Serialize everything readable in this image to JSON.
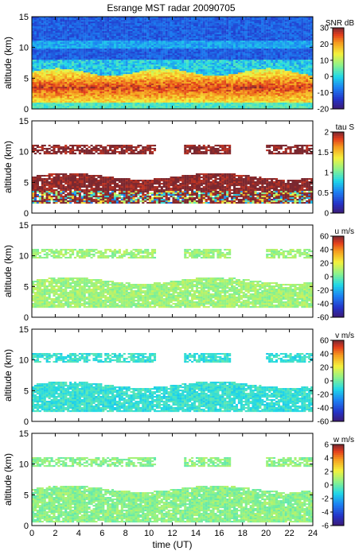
{
  "chart_data": [
    {
      "type": "heatmap",
      "title": "Esrange MST radar 20090705",
      "ylabel": "altitude (km)",
      "xlabel": "",
      "xlim": [
        0,
        24
      ],
      "ylim": [
        0,
        15
      ],
      "yticks": [
        "0",
        "5",
        "10",
        "15"
      ],
      "xticks": [],
      "colorbar": {
        "label": "SNR dB",
        "range": [
          -20,
          30
        ],
        "ticks": [
          "30",
          "20",
          "10",
          "0",
          "-10",
          "-20"
        ]
      },
      "features": {
        "background": "-12 dB noise floor above ~6 km",
        "strong_layer_km": [
          1.5,
          6
        ],
        "peak_db": 28
      }
    },
    {
      "type": "heatmap",
      "title": "",
      "ylabel": "altitude (km)",
      "xlabel": "",
      "xlim": [
        0,
        24
      ],
      "ylim": [
        0,
        15
      ],
      "yticks": [
        "0",
        "5",
        "10",
        "15"
      ],
      "xticks": [],
      "colorbar": {
        "label": "tau S",
        "range": [
          0,
          2
        ],
        "ticks": [
          "2",
          "1.5",
          "1",
          "0.5",
          "0"
        ]
      },
      "features": {
        "lower_layer_km": [
          1.5,
          6
        ],
        "upper_layer_km": [
          9.5,
          11
        ],
        "typical_value": 2.0
      }
    },
    {
      "type": "heatmap",
      "title": "",
      "ylabel": "altitude (km)",
      "xlabel": "",
      "xlim": [
        0,
        24
      ],
      "ylim": [
        0,
        15
      ],
      "yticks": [
        "0",
        "5",
        "10",
        "15"
      ],
      "xticks": [],
      "colorbar": {
        "label": "u m/s",
        "range": [
          -60,
          60
        ],
        "ticks": [
          "60",
          "40",
          "20",
          "0",
          "-20",
          "-40",
          "-60"
        ]
      },
      "features": {
        "lower_layer_km": [
          1.5,
          6
        ],
        "upper_layer_km": [
          9.5,
          11
        ],
        "typical_value": 8
      }
    },
    {
      "type": "heatmap",
      "title": "",
      "ylabel": "altitude (km)",
      "xlabel": "",
      "xlim": [
        0,
        24
      ],
      "ylim": [
        0,
        15
      ],
      "yticks": [
        "0",
        "5",
        "10",
        "15"
      ],
      "xticks": [],
      "colorbar": {
        "label": "v m/s",
        "range": [
          -60,
          60
        ],
        "ticks": [
          "60",
          "40",
          "20",
          "0",
          "-20",
          "-40",
          "-60"
        ]
      },
      "features": {
        "lower_layer_km": [
          1.5,
          6
        ],
        "upper_layer_km": [
          9.5,
          11
        ],
        "typical_value": -8
      }
    },
    {
      "type": "heatmap",
      "title": "",
      "ylabel": "altitude (km)",
      "xlabel": "time (UT)",
      "xlim": [
        0,
        24
      ],
      "ylim": [
        0,
        15
      ],
      "yticks": [
        "0",
        "5",
        "10",
        "15"
      ],
      "xticks": [
        "0",
        "2",
        "4",
        "6",
        "8",
        "10",
        "12",
        "14",
        "16",
        "18",
        "20",
        "22",
        "24"
      ],
      "colorbar": {
        "label": "w m/s",
        "range": [
          -6,
          6
        ],
        "ticks": [
          "6",
          "4",
          "2",
          "0",
          "-2",
          "-4",
          "-6"
        ]
      },
      "features": {
        "lower_layer_km": [
          0.5,
          6
        ],
        "upper_layer_km": [
          9.5,
          11
        ],
        "typical_value": 0.5
      }
    }
  ]
}
